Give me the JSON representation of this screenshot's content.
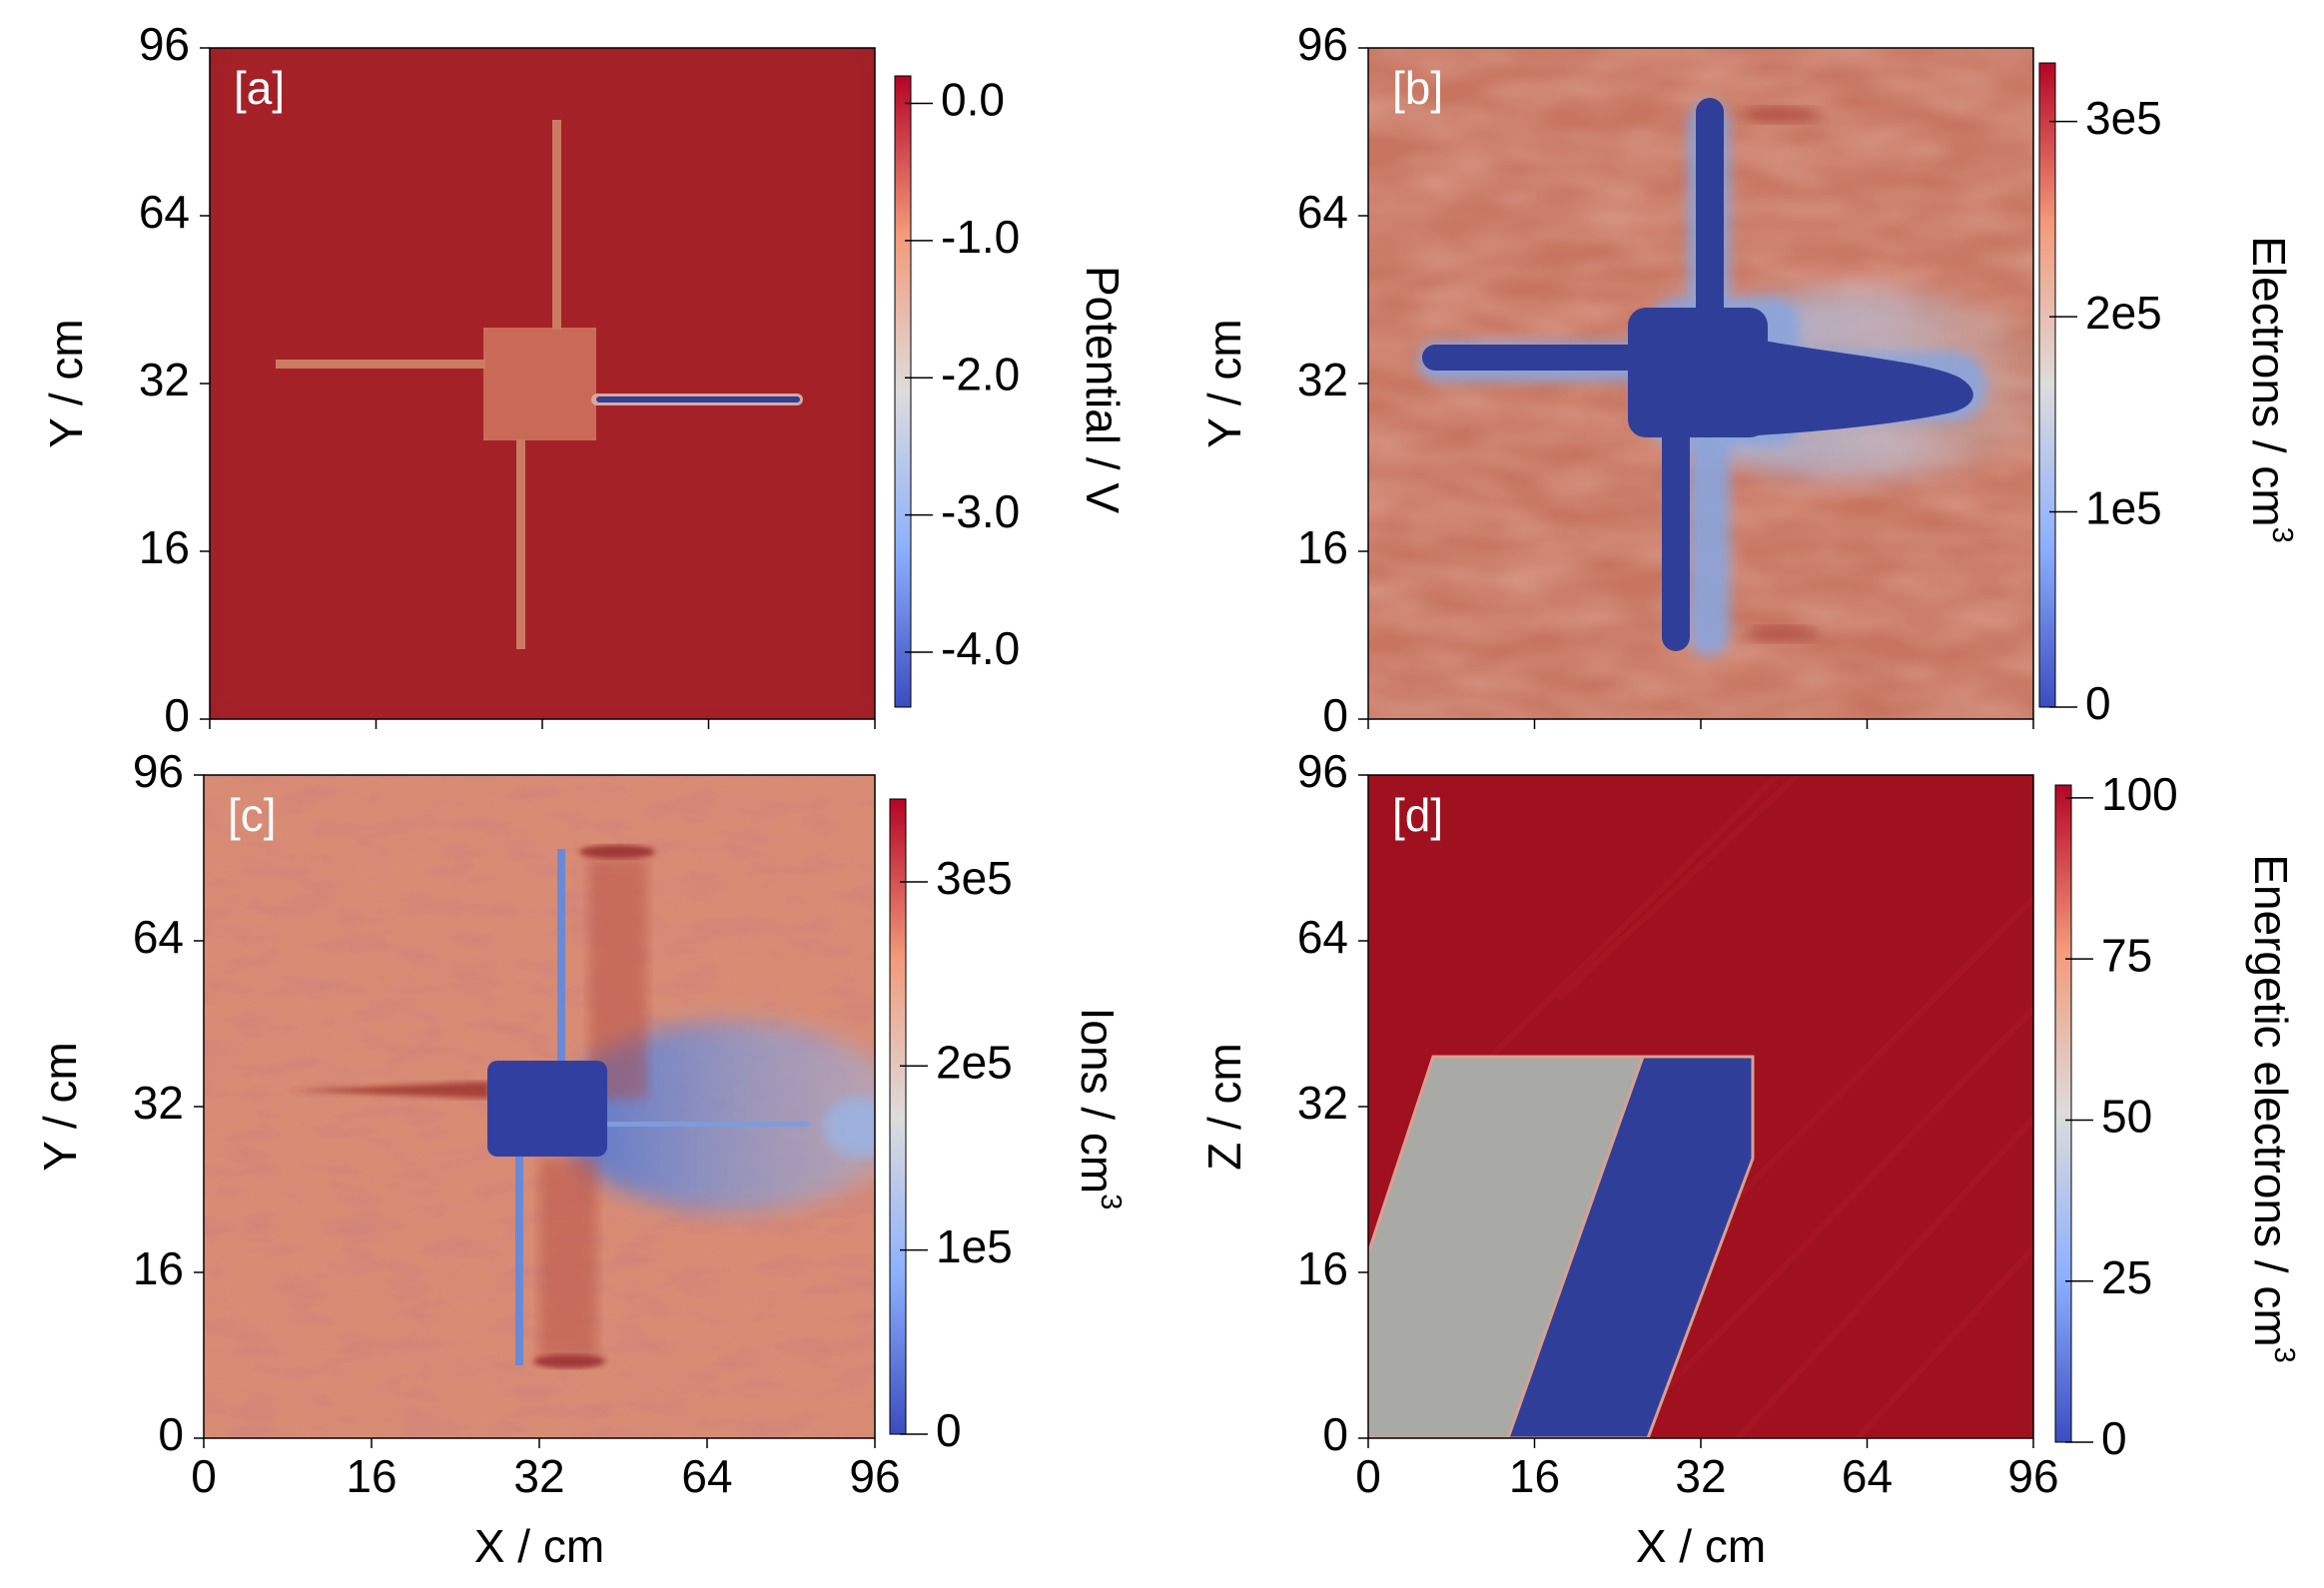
{
  "chart_data": [
    {
      "type": "heatmap",
      "panel_label": "[a]",
      "ylabel": "Y / cm",
      "xlabel": "",
      "colorbar_label": "Potential / V",
      "colorbar_ticks": [
        "0.0",
        "-1.0",
        "-2.0",
        "-3.0",
        "-4.0"
      ],
      "colorbar_tick_values": [
        0,
        -1,
        -2,
        -3,
        -4
      ],
      "colorbar_range": [
        -4.4,
        0.2
      ],
      "yticks": [
        "0",
        "16",
        "32",
        "64",
        "96"
      ],
      "colormap": "coolwarm",
      "background_value": 0
    },
    {
      "type": "heatmap",
      "panel_label": "[b]",
      "ylabel": "Y / cm",
      "xlabel": "",
      "colorbar_label": "Electrons / cm",
      "colorbar_label_sup": "3",
      "colorbar_ticks": [
        "3e5",
        "2e5",
        "1e5",
        "0"
      ],
      "colorbar_tick_values": [
        300000,
        200000,
        100000,
        0
      ],
      "colorbar_range": [
        0,
        330000
      ],
      "yticks": [
        "0",
        "16",
        "32",
        "64",
        "96"
      ],
      "colormap": "coolwarm"
    },
    {
      "type": "heatmap",
      "panel_label": "[c]",
      "ylabel": "Y / cm",
      "xlabel": "X / cm",
      "colorbar_label": "Ions / cm",
      "colorbar_label_sup": "3",
      "colorbar_ticks": [
        "3e5",
        "2e5",
        "1e5",
        "0"
      ],
      "colorbar_tick_values": [
        300000,
        200000,
        100000,
        0
      ],
      "colorbar_range": [
        0,
        345000
      ],
      "yticks": [
        "0",
        "16",
        "32",
        "64",
        "96"
      ],
      "xticks": [
        "0",
        "16",
        "32",
        "64",
        "96"
      ],
      "colormap": "coolwarm"
    },
    {
      "type": "heatmap",
      "panel_label": "[d]",
      "ylabel": "Z / cm",
      "xlabel": "X / cm",
      "colorbar_label": "Energetic electrons / cm",
      "colorbar_label_sup": "3",
      "colorbar_ticks": [
        "100",
        "75",
        "50",
        "25",
        "0"
      ],
      "colorbar_tick_values": [
        100,
        75,
        50,
        25,
        0
      ],
      "colorbar_range": [
        0,
        102
      ],
      "yticks": [
        "0",
        "16",
        "32",
        "64",
        "96"
      ],
      "xticks": [
        "0",
        "16",
        "32",
        "64",
        "96"
      ],
      "colormap": "coolwarm"
    }
  ],
  "colors": {
    "deep_red": "#a01e27",
    "mid_red": "#c46a55",
    "gray": "#a9a9a6",
    "deep_blue": "#2f3f99",
    "light_blue": "#5f86d6"
  }
}
